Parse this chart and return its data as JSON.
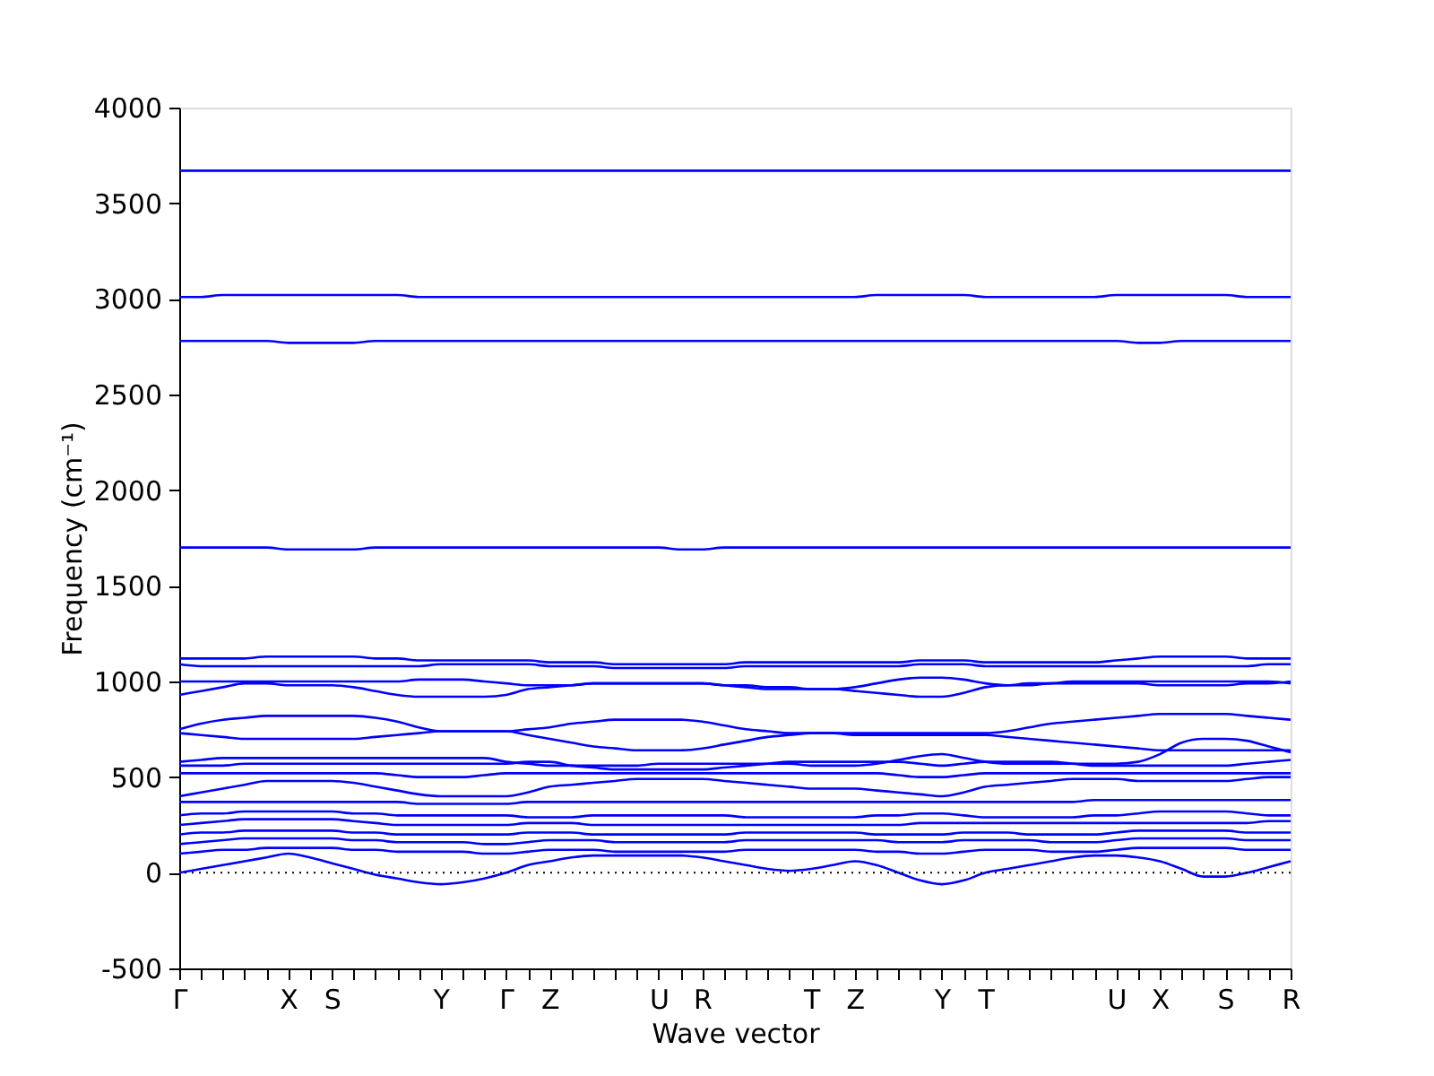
{
  "chart_data": {
    "type": "line",
    "xlabel": "Wave vector",
    "ylabel": "Frequency (cm⁻¹)",
    "categories": [
      "Γ",
      null,
      null,
      null,
      null,
      "X",
      null,
      "S",
      null,
      null,
      null,
      null,
      "Y",
      null,
      null,
      "Γ",
      null,
      "Z",
      null,
      null,
      null,
      null,
      "U",
      null,
      "R",
      null,
      null,
      null,
      null,
      "T",
      null,
      "Z",
      null,
      null,
      null,
      "Y",
      null,
      "T",
      null,
      null,
      null,
      null,
      null,
      "U",
      null,
      "X",
      null,
      null,
      "S",
      null,
      null,
      "R"
    ],
    "ylim": [
      -500,
      4000
    ],
    "yticks": [
      -500,
      0,
      500,
      1000,
      1500,
      2000,
      2500,
      3000,
      3500,
      4000
    ],
    "grid": false,
    "legend": false,
    "marker": "none",
    "line_style": "solid",
    "ref_lines": [
      {
        "axis": "y",
        "value": 0,
        "label": null,
        "color": "#000000",
        "line_style": "dotted"
      }
    ],
    "series": [
      {
        "color": "#0000ff",
        "values": [
          3670,
          3670,
          3670,
          3670,
          3670,
          3670,
          3670,
          3670,
          3670,
          3670,
          3670,
          3670,
          3670,
          3670,
          3670,
          3670,
          3670,
          3670,
          3670,
          3670,
          3670,
          3670,
          3670,
          3670,
          3670,
          3670,
          3670,
          3670,
          3670,
          3670,
          3670,
          3670,
          3670,
          3670,
          3670,
          3670,
          3670,
          3670,
          3670,
          3670,
          3670,
          3670,
          3670,
          3670,
          3670,
          3670,
          3670,
          3670,
          3670,
          3670,
          3670,
          3670
        ]
      },
      {
        "color": "#0000ff",
        "values": [
          3010,
          3010,
          3020,
          3020,
          3020,
          3020,
          3020,
          3020,
          3020,
          3020,
          3020,
          3010,
          3010,
          3010,
          3010,
          3010,
          3010,
          3010,
          3010,
          3010,
          3010,
          3010,
          3010,
          3010,
          3010,
          3010,
          3010,
          3010,
          3010,
          3010,
          3010,
          3010,
          3020,
          3020,
          3020,
          3020,
          3020,
          3010,
          3010,
          3010,
          3010,
          3010,
          3010,
          3020,
          3020,
          3020,
          3020,
          3020,
          3020,
          3010,
          3010,
          3010
        ]
      },
      {
        "color": "#0000ff",
        "values": [
          2780,
          2780,
          2780,
          2780,
          2780,
          2770,
          2770,
          2770,
          2770,
          2780,
          2780,
          2780,
          2780,
          2780,
          2780,
          2780,
          2780,
          2780,
          2780,
          2780,
          2780,
          2780,
          2780,
          2780,
          2780,
          2780,
          2780,
          2780,
          2780,
          2780,
          2780,
          2780,
          2780,
          2780,
          2780,
          2780,
          2780,
          2780,
          2780,
          2780,
          2780,
          2780,
          2780,
          2780,
          2770,
          2770,
          2780,
          2780,
          2780,
          2780,
          2780,
          2780
        ]
      },
      {
        "color": "#0000ff",
        "values": [
          1700,
          1700,
          1700,
          1700,
          1700,
          1690,
          1690,
          1690,
          1690,
          1700,
          1700,
          1700,
          1700,
          1700,
          1700,
          1700,
          1700,
          1700,
          1700,
          1700,
          1700,
          1700,
          1700,
          1690,
          1690,
          1700,
          1700,
          1700,
          1700,
          1700,
          1700,
          1700,
          1700,
          1700,
          1700,
          1700,
          1700,
          1700,
          1700,
          1700,
          1700,
          1700,
          1700,
          1700,
          1700,
          1700,
          1700,
          1700,
          1700,
          1700,
          1700,
          1700
        ]
      },
      {
        "color": "#0000ff",
        "values": [
          1120,
          1120,
          1120,
          1120,
          1130,
          1130,
          1130,
          1130,
          1130,
          1120,
          1120,
          1110,
          1110,
          1110,
          1110,
          1110,
          1110,
          1100,
          1100,
          1100,
          1090,
          1090,
          1090,
          1090,
          1090,
          1090,
          1100,
          1100,
          1100,
          1100,
          1100,
          1100,
          1100,
          1100,
          1110,
          1110,
          1110,
          1100,
          1100,
          1100,
          1100,
          1100,
          1100,
          1110,
          1120,
          1130,
          1130,
          1130,
          1130,
          1120,
          1120,
          1120
        ]
      },
      {
        "color": "#0000ff",
        "values": [
          1090,
          1080,
          1080,
          1080,
          1080,
          1080,
          1080,
          1080,
          1080,
          1080,
          1080,
          1080,
          1090,
          1090,
          1090,
          1090,
          1090,
          1080,
          1080,
          1080,
          1070,
          1070,
          1070,
          1070,
          1070,
          1070,
          1080,
          1080,
          1080,
          1080,
          1080,
          1080,
          1080,
          1080,
          1090,
          1090,
          1090,
          1080,
          1080,
          1080,
          1080,
          1080,
          1080,
          1080,
          1080,
          1080,
          1080,
          1080,
          1080,
          1080,
          1090,
          1090
        ]
      },
      {
        "color": "#0000ff",
        "values": [
          1000,
          1000,
          1000,
          1000,
          1000,
          1000,
          1000,
          1000,
          1000,
          1000,
          1000,
          1010,
          1010,
          1010,
          1000,
          990,
          980,
          980,
          980,
          990,
          990,
          990,
          990,
          990,
          990,
          980,
          980,
          970,
          970,
          960,
          960,
          970,
          990,
          1010,
          1020,
          1020,
          1010,
          990,
          980,
          990,
          990,
          1000,
          1000,
          1000,
          1000,
          1000,
          1000,
          1000,
          1000,
          1000,
          1000,
          990
        ]
      },
      {
        "color": "#0000ff",
        "values": [
          930,
          950,
          970,
          990,
          990,
          980,
          980,
          980,
          970,
          950,
          930,
          920,
          920,
          920,
          920,
          930,
          960,
          970,
          980,
          990,
          990,
          990,
          990,
          990,
          990,
          980,
          970,
          960,
          960,
          960,
          960,
          950,
          940,
          930,
          920,
          920,
          940,
          970,
          980,
          980,
          990,
          990,
          990,
          990,
          990,
          980,
          980,
          980,
          980,
          990,
          990,
          1000
        ]
      },
      {
        "color": "#0000ff",
        "values": [
          750,
          780,
          800,
          810,
          820,
          820,
          820,
          820,
          820,
          810,
          790,
          760,
          740,
          740,
          740,
          740,
          720,
          700,
          680,
          660,
          650,
          640,
          640,
          640,
          650,
          670,
          690,
          710,
          720,
          730,
          730,
          730,
          730,
          730,
          730,
          730,
          730,
          730,
          740,
          760,
          780,
          790,
          800,
          810,
          820,
          830,
          830,
          830,
          830,
          820,
          810,
          800
        ]
      },
      {
        "color": "#0000ff",
        "values": [
          730,
          720,
          710,
          700,
          700,
          700,
          700,
          700,
          700,
          710,
          720,
          730,
          740,
          740,
          740,
          740,
          750,
          760,
          780,
          790,
          800,
          800,
          800,
          800,
          790,
          770,
          750,
          740,
          730,
          730,
          730,
          720,
          720,
          720,
          720,
          720,
          720,
          720,
          710,
          700,
          690,
          680,
          670,
          660,
          650,
          640,
          640,
          640,
          640,
          640,
          640,
          640
        ]
      },
      {
        "color": "#0000ff",
        "values": [
          580,
          590,
          600,
          600,
          600,
          600,
          600,
          600,
          600,
          600,
          600,
          600,
          600,
          600,
          600,
          580,
          570,
          560,
          560,
          560,
          560,
          560,
          570,
          570,
          570,
          570,
          570,
          570,
          570,
          560,
          560,
          560,
          570,
          590,
          610,
          620,
          600,
          580,
          570,
          570,
          570,
          570,
          570,
          570,
          580,
          620,
          680,
          700,
          700,
          690,
          660,
          630
        ]
      },
      {
        "color": "#0000ff",
        "values": [
          560,
          560,
          560,
          570,
          570,
          570,
          570,
          570,
          570,
          570,
          570,
          570,
          570,
          570,
          570,
          570,
          580,
          580,
          560,
          550,
          540,
          540,
          540,
          540,
          540,
          550,
          560,
          570,
          580,
          580,
          580,
          580,
          580,
          580,
          570,
          560,
          570,
          580,
          580,
          580,
          580,
          570,
          560,
          560,
          560,
          560,
          560,
          560,
          560,
          570,
          580,
          590
        ]
      },
      {
        "color": "#0000ff",
        "values": [
          520,
          520,
          520,
          520,
          520,
          520,
          520,
          520,
          520,
          520,
          510,
          500,
          500,
          500,
          510,
          520,
          520,
          520,
          520,
          520,
          520,
          520,
          520,
          520,
          520,
          520,
          520,
          520,
          520,
          520,
          520,
          520,
          520,
          510,
          500,
          500,
          510,
          520,
          520,
          520,
          520,
          520,
          520,
          520,
          520,
          520,
          520,
          520,
          520,
          520,
          520,
          520
        ]
      },
      {
        "color": "#0000ff",
        "values": [
          400,
          420,
          440,
          460,
          480,
          480,
          480,
          480,
          470,
          450,
          430,
          410,
          400,
          400,
          400,
          400,
          420,
          450,
          460,
          470,
          480,
          490,
          490,
          490,
          490,
          480,
          470,
          460,
          450,
          440,
          440,
          440,
          430,
          420,
          410,
          400,
          420,
          450,
          460,
          470,
          480,
          490,
          490,
          490,
          480,
          480,
          480,
          480,
          480,
          490,
          500,
          500
        ]
      },
      {
        "color": "#0000ff",
        "values": [
          370,
          370,
          370,
          370,
          370,
          370,
          370,
          370,
          370,
          370,
          370,
          360,
          360,
          360,
          360,
          360,
          370,
          370,
          370,
          370,
          370,
          370,
          370,
          370,
          370,
          370,
          370,
          370,
          370,
          370,
          370,
          370,
          370,
          370,
          370,
          370,
          370,
          370,
          370,
          370,
          370,
          370,
          380,
          380,
          380,
          380,
          380,
          380,
          380,
          380,
          380,
          380
        ]
      },
      {
        "color": "#0000ff",
        "values": [
          300,
          310,
          310,
          320,
          320,
          320,
          320,
          320,
          310,
          310,
          300,
          300,
          300,
          300,
          300,
          300,
          290,
          290,
          290,
          300,
          300,
          300,
          300,
          300,
          300,
          300,
          290,
          290,
          290,
          290,
          290,
          290,
          300,
          300,
          310,
          310,
          300,
          290,
          290,
          290,
          290,
          290,
          300,
          300,
          310,
          320,
          320,
          320,
          320,
          310,
          300,
          300
        ]
      },
      {
        "color": "#0000ff",
        "values": [
          250,
          260,
          270,
          280,
          280,
          280,
          280,
          280,
          270,
          260,
          250,
          250,
          250,
          250,
          250,
          250,
          260,
          260,
          260,
          250,
          250,
          250,
          250,
          250,
          250,
          250,
          250,
          250,
          250,
          250,
          250,
          250,
          250,
          250,
          260,
          260,
          260,
          260,
          260,
          260,
          260,
          260,
          260,
          260,
          260,
          260,
          260,
          260,
          260,
          260,
          270,
          270
        ]
      },
      {
        "color": "#0000ff",
        "values": [
          200,
          210,
          210,
          220,
          220,
          220,
          220,
          220,
          210,
          210,
          200,
          200,
          200,
          200,
          200,
          200,
          210,
          210,
          210,
          200,
          200,
          200,
          200,
          200,
          200,
          200,
          210,
          210,
          210,
          210,
          210,
          210,
          200,
          200,
          200,
          200,
          210,
          210,
          210,
          200,
          200,
          200,
          200,
          210,
          220,
          220,
          220,
          220,
          220,
          210,
          210,
          210
        ]
      },
      {
        "color": "#0000ff",
        "values": [
          150,
          160,
          170,
          180,
          180,
          180,
          180,
          180,
          170,
          170,
          160,
          160,
          160,
          160,
          150,
          150,
          160,
          170,
          170,
          170,
          160,
          160,
          160,
          160,
          160,
          160,
          170,
          170,
          170,
          170,
          170,
          170,
          170,
          160,
          160,
          160,
          170,
          170,
          170,
          170,
          160,
          160,
          160,
          170,
          180,
          180,
          180,
          180,
          180,
          170,
          170,
          170
        ]
      },
      {
        "color": "#0000ff",
        "values": [
          100,
          110,
          120,
          120,
          130,
          130,
          130,
          130,
          120,
          120,
          110,
          110,
          110,
          110,
          100,
          100,
          110,
          120,
          120,
          120,
          110,
          110,
          110,
          110,
          110,
          110,
          120,
          120,
          120,
          120,
          120,
          120,
          110,
          110,
          100,
          100,
          110,
          120,
          120,
          120,
          110,
          110,
          110,
          120,
          130,
          130,
          130,
          130,
          130,
          120,
          120,
          120
        ]
      },
      {
        "color": "#0000ff",
        "values": [
          0,
          20,
          40,
          60,
          80,
          100,
          80,
          50,
          20,
          -10,
          -30,
          -50,
          -60,
          -50,
          -30,
          0,
          40,
          60,
          80,
          90,
          90,
          90,
          90,
          90,
          80,
          60,
          40,
          20,
          10,
          20,
          40,
          60,
          40,
          0,
          -40,
          -60,
          -40,
          0,
          20,
          40,
          60,
          80,
          90,
          90,
          80,
          60,
          20,
          -20,
          -20,
          0,
          30,
          60
        ]
      }
    ]
  }
}
